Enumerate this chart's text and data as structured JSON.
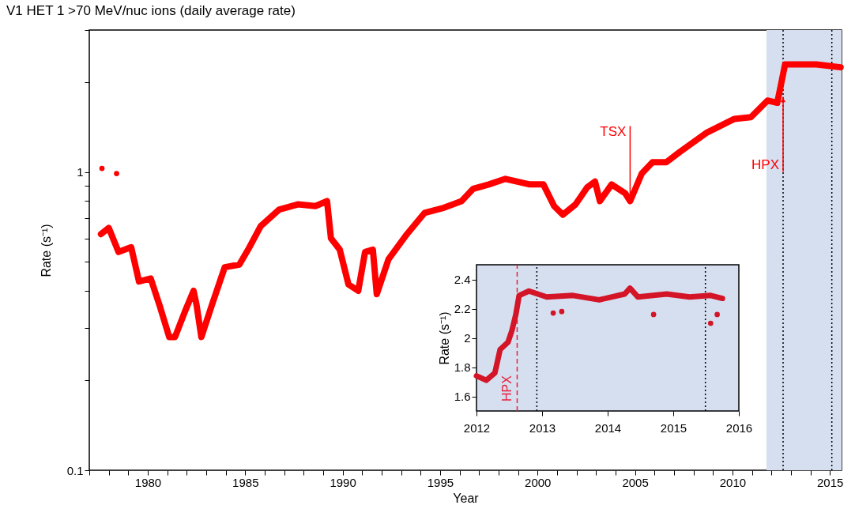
{
  "chart_data": [
    {
      "type": "line",
      "title": "V1 HET 1 >70 MeV/nuc ions (daily average rate)",
      "xlabel": "Year",
      "ylabel": "Rate (s⁻¹)",
      "log": "y",
      "grid": false,
      "line_style": "solid",
      "marker": "none",
      "xlim": [
        1977,
        2015.6
      ],
      "ylim": [
        0.1,
        3
      ],
      "xticks": [
        {
          "value": 1977,
          "label": null
        },
        {
          "value": 1978,
          "label": null
        },
        {
          "value": 1979,
          "label": null
        },
        1980,
        {
          "value": 1981,
          "label": null
        },
        {
          "value": 1982,
          "label": null
        },
        {
          "value": 1983,
          "label": null
        },
        {
          "value": 1984,
          "label": null
        },
        1985,
        {
          "value": 1986,
          "label": null
        },
        {
          "value": 1987,
          "label": null
        },
        {
          "value": 1988,
          "label": null
        },
        {
          "value": 1989,
          "label": null
        },
        1990,
        {
          "value": 1991,
          "label": null
        },
        {
          "value": 1992,
          "label": null
        },
        {
          "value": 1993,
          "label": null
        },
        {
          "value": 1994,
          "label": null
        },
        1995,
        {
          "value": 1996,
          "label": null
        },
        {
          "value": 1997,
          "label": null
        },
        {
          "value": 1998,
          "label": null
        },
        {
          "value": 1999,
          "label": null
        },
        2000,
        {
          "value": 2001,
          "label": null
        },
        {
          "value": 2002,
          "label": null
        },
        {
          "value": 2003,
          "label": null
        },
        {
          "value": 2004,
          "label": null
        },
        2005,
        {
          "value": 2006,
          "label": null
        },
        {
          "value": 2007,
          "label": null
        },
        {
          "value": 2008,
          "label": null
        },
        {
          "value": 2009,
          "label": null
        },
        2010,
        {
          "value": 2011,
          "label": null
        },
        {
          "value": 2012,
          "label": null
        },
        {
          "value": 2013,
          "label": null
        },
        {
          "value": 2014,
          "label": null
        },
        2015
      ],
      "yticks": [
        0.1,
        {
          "value": 0.2,
          "label": null
        },
        {
          "value": 0.3,
          "label": null
        },
        {
          "value": 0.4,
          "label": null
        },
        {
          "value": 0.5,
          "label": null
        },
        {
          "value": 0.6,
          "label": null
        },
        {
          "value": 0.7,
          "label": null
        },
        {
          "value": 0.8,
          "label": null
        },
        {
          "value": 0.9,
          "label": null
        },
        1,
        {
          "value": 2,
          "label": null
        },
        {
          "value": 3,
          "label": null
        }
      ],
      "bands": [
        {
          "axis": "x",
          "from": 2011.75,
          "to": 2015.6,
          "color": "#d5dff0"
        }
      ],
      "ref_lines": [
        {
          "axis": "x",
          "value": 2012.6,
          "line_style": "dotted",
          "color": "#000000"
        },
        {
          "axis": "x",
          "value": 2015.1,
          "line_style": "dotted",
          "color": "#000000"
        }
      ],
      "annotations": [
        {
          "text": "TSX",
          "x": 2004.75,
          "y": 0.8
        },
        {
          "text": "HPX",
          "x": 2012.6,
          "y": 1.79
        }
      ],
      "series": [
        {
          "type": "line",
          "color": "#ff0000",
          "x": [
            1977.6,
            1978.0,
            1978.5,
            1979.15,
            1979.55,
            1980.15,
            1980.65,
            1981.1,
            1981.4,
            1981.9,
            1982.35,
            1982.5,
            1982.75,
            1983.3,
            1983.95,
            1984.7,
            1985.15,
            1985.8,
            1986.75,
            1987.7,
            1988.6,
            1989.2,
            1989.4,
            1989.85,
            1990.3,
            1990.8,
            1991.15,
            1991.55,
            1991.75,
            1992.35,
            1993.3,
            1994.2,
            1995.2,
            1996.1,
            1996.7,
            1997.5,
            1998.35,
            1999.6,
            2000.3,
            2000.85,
            2001.3,
            2001.95,
            2002.55,
            2002.95,
            2003.2,
            2003.8,
            2004.5,
            2004.75,
            2005.35,
            2005.9,
            2006.6,
            2007.3,
            2008.7,
            2010.1,
            2010.95,
            2011.8,
            2012.3,
            2012.5,
            2012.7,
            2014.3,
            2015.55
          ],
          "values": [
            0.62,
            0.65,
            0.54,
            0.56,
            0.43,
            0.44,
            0.35,
            0.28,
            0.28,
            0.34,
            0.4,
            0.36,
            0.28,
            0.36,
            0.48,
            0.49,
            0.55,
            0.66,
            0.75,
            0.78,
            0.77,
            0.8,
            0.6,
            0.55,
            0.42,
            0.4,
            0.54,
            0.55,
            0.39,
            0.51,
            0.62,
            0.73,
            0.76,
            0.8,
            0.88,
            0.91,
            0.95,
            0.91,
            0.91,
            0.77,
            0.72,
            0.78,
            0.89,
            0.93,
            0.8,
            0.91,
            0.85,
            0.8,
            0.99,
            1.08,
            1.08,
            1.17,
            1.36,
            1.51,
            1.53,
            1.74,
            1.71,
            1.98,
            2.3,
            2.3,
            2.25
          ]
        },
        {
          "type": "scatter",
          "color": "#ff0000",
          "x": [
            1977.65,
            1978.4
          ],
          "values": [
            1.03,
            0.99
          ]
        }
      ]
    },
    {
      "type": "line",
      "ylabel": "Rate (s⁻¹)",
      "grid": false,
      "line_style": "solid",
      "marker": "none",
      "xlim": [
        2012,
        2016
      ],
      "ylim": [
        1.5,
        2.5
      ],
      "xticks": [
        2012,
        2013,
        2014,
        2015,
        2016
      ],
      "yticks": [
        1.6,
        1.8,
        2,
        2.2,
        2.4
      ],
      "bands": [
        {
          "axis": "x",
          "from": 2012,
          "to": 2016,
          "color": "#d5dff0"
        }
      ],
      "ref_lines": [
        {
          "axis": "x",
          "value": 2012.62,
          "label": "HPX",
          "line_style": "dashed",
          "color": "#e8203a"
        },
        {
          "axis": "x",
          "value": 2012.92,
          "line_style": "dotted",
          "color": "#000000"
        },
        {
          "axis": "x",
          "value": 2015.49,
          "line_style": "dotted",
          "color": "#000000"
        }
      ],
      "series": [
        {
          "type": "line",
          "color": "#d41427",
          "x": [
            2012.0,
            2012.15,
            2012.28,
            2012.36,
            2012.48,
            2012.54,
            2012.6,
            2012.65,
            2012.8,
            2013.07,
            2013.47,
            2013.87,
            2014.26,
            2014.34,
            2014.46,
            2014.9,
            2015.25,
            2015.57,
            2015.75
          ],
          "values": [
            1.74,
            1.71,
            1.76,
            1.92,
            1.97,
            2.05,
            2.16,
            2.29,
            2.32,
            2.28,
            2.29,
            2.26,
            2.3,
            2.34,
            2.28,
            2.3,
            2.28,
            2.29,
            2.27
          ]
        },
        {
          "type": "scatter",
          "color": "#d41427",
          "x": [
            2013.17,
            2013.3,
            2014.7,
            2015.57,
            2015.67
          ],
          "values": [
            2.17,
            2.18,
            2.16,
            2.1,
            2.16
          ]
        }
      ]
    }
  ]
}
